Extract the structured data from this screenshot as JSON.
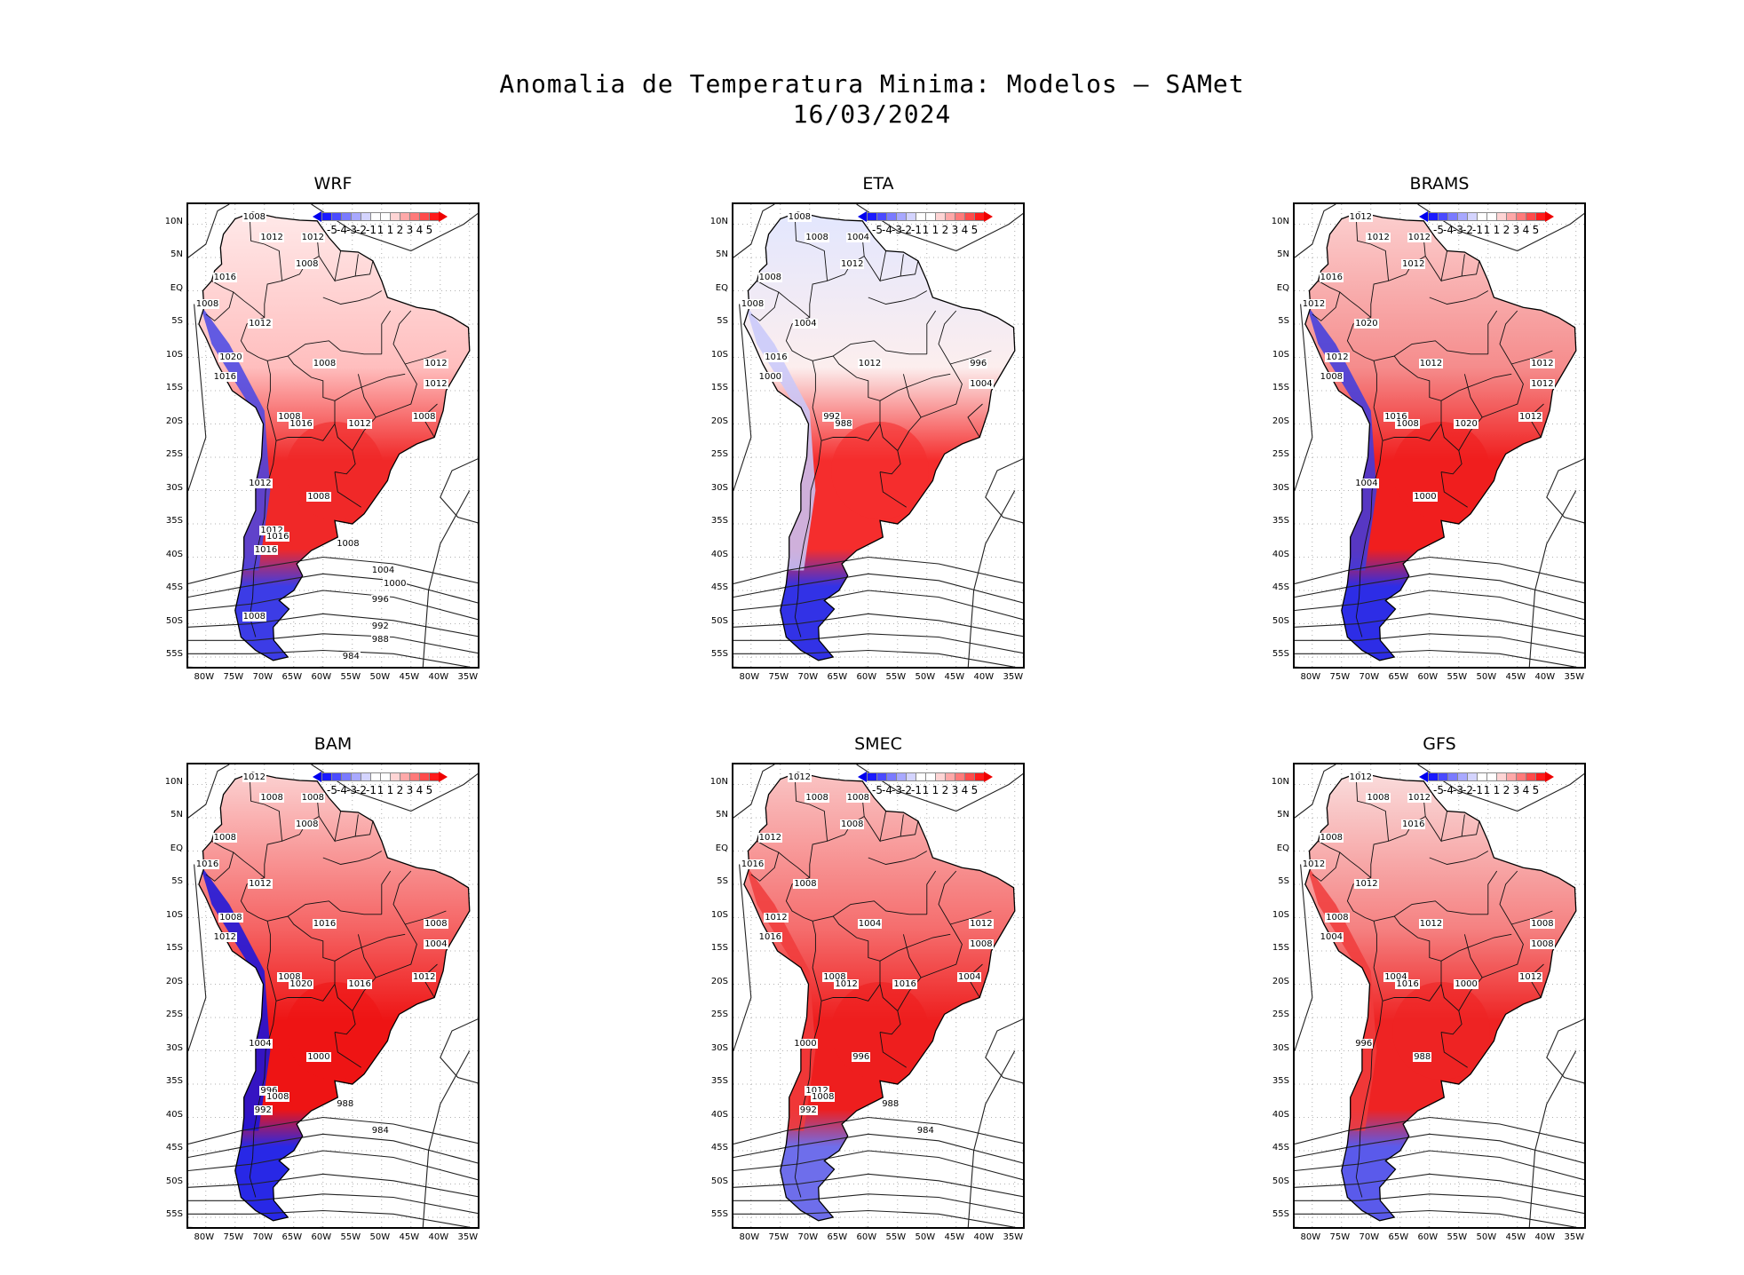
{
  "title": {
    "line1": "Anomalia de Temperatura Minima: Modelos — SAMet",
    "line2": "16/03/2024"
  },
  "axes": {
    "lat_labels": [
      "10N",
      "5N",
      "EQ",
      "5S",
      "10S",
      "15S",
      "20S",
      "25S",
      "30S",
      "35S",
      "40S",
      "45S",
      "50S",
      "55S"
    ],
    "lon_labels": [
      "80W",
      "75W",
      "70W",
      "65W",
      "60W",
      "55W",
      "50W",
      "45W",
      "40W",
      "35W"
    ]
  },
  "colorbar": {
    "labels": [
      "-5",
      "-4",
      "-3",
      "-2",
      "-1",
      "1",
      "1",
      "2",
      "3",
      "4",
      "5"
    ],
    "colors": [
      "#1a1aff",
      "#4a4aff",
      "#7a7aff",
      "#a8a8ff",
      "#d4d4ff",
      "#ffffff",
      "#ffffff",
      "#ffd4d4",
      "#ffa8a8",
      "#ff7a7a",
      "#ff4a4a",
      "#ff1a1a"
    ],
    "under_color": "#0000ee",
    "over_color": "#ee0000"
  },
  "panels": [
    {
      "name": "WRF",
      "isobars": [
        {
          "t": "1008"
        },
        {
          "t": "1012"
        },
        {
          "t": "1012"
        },
        {
          "t": "1008"
        },
        {
          "t": "1016"
        },
        {
          "t": "1008"
        },
        {
          "t": "1012"
        },
        {
          "t": "1020"
        },
        {
          "t": "1016"
        },
        {
          "t": "1008"
        },
        {
          "t": "1012"
        },
        {
          "t": "1012"
        },
        {
          "t": "1008"
        },
        {
          "t": "1016"
        },
        {
          "t": "1012"
        },
        {
          "t": "1008"
        },
        {
          "t": "1012"
        },
        {
          "t": "1008"
        },
        {
          "t": "1012"
        },
        {
          "t": "1016"
        },
        {
          "t": "1016"
        },
        {
          "t": "1008"
        },
        {
          "t": "1004"
        },
        {
          "t": "1000"
        },
        {
          "t": "996"
        },
        {
          "t": "1008"
        },
        {
          "t": "992"
        },
        {
          "t": "988"
        },
        {
          "t": "984"
        }
      ]
    },
    {
      "name": "ETA",
      "isobars": [
        {
          "t": "1008"
        },
        {
          "t": "1008"
        },
        {
          "t": "1004"
        },
        {
          "t": "1012"
        },
        {
          "t": "1008"
        },
        {
          "t": "1008"
        },
        {
          "t": "1004"
        },
        {
          "t": "1016"
        },
        {
          "t": "1000"
        },
        {
          "t": "1012"
        },
        {
          "t": "996"
        },
        {
          "t": "1004"
        },
        {
          "t": "992"
        },
        {
          "t": "988"
        }
      ]
    },
    {
      "name": "BRAMS",
      "isobars": [
        {
          "t": "1012"
        },
        {
          "t": "1012"
        },
        {
          "t": "1012"
        },
        {
          "t": "1012"
        },
        {
          "t": "1016"
        },
        {
          "t": "1012"
        },
        {
          "t": "1020"
        },
        {
          "t": "1012"
        },
        {
          "t": "1008"
        },
        {
          "t": "1012"
        },
        {
          "t": "1012"
        },
        {
          "t": "1012"
        },
        {
          "t": "1016"
        },
        {
          "t": "1008"
        },
        {
          "t": "1020"
        },
        {
          "t": "1012"
        },
        {
          "t": "1004"
        },
        {
          "t": "1000"
        }
      ]
    },
    {
      "name": "BAM",
      "isobars": [
        {
          "t": "1012"
        },
        {
          "t": "1008"
        },
        {
          "t": "1008"
        },
        {
          "t": "1008"
        },
        {
          "t": "1008"
        },
        {
          "t": "1016"
        },
        {
          "t": "1012"
        },
        {
          "t": "1008"
        },
        {
          "t": "1012"
        },
        {
          "t": "1016"
        },
        {
          "t": "1008"
        },
        {
          "t": "1004"
        },
        {
          "t": "1008"
        },
        {
          "t": "1020"
        },
        {
          "t": "1016"
        },
        {
          "t": "1012"
        },
        {
          "t": "1004"
        },
        {
          "t": "1000"
        },
        {
          "t": "996"
        },
        {
          "t": "1008"
        },
        {
          "t": "992"
        },
        {
          "t": "988"
        },
        {
          "t": "984"
        }
      ]
    },
    {
      "name": "SMEC",
      "isobars": [
        {
          "t": "1012"
        },
        {
          "t": "1008"
        },
        {
          "t": "1008"
        },
        {
          "t": "1008"
        },
        {
          "t": "1012"
        },
        {
          "t": "1016"
        },
        {
          "t": "1008"
        },
        {
          "t": "1012"
        },
        {
          "t": "1016"
        },
        {
          "t": "1004"
        },
        {
          "t": "1012"
        },
        {
          "t": "1008"
        },
        {
          "t": "1008"
        },
        {
          "t": "1012"
        },
        {
          "t": "1016"
        },
        {
          "t": "1004"
        },
        {
          "t": "1000"
        },
        {
          "t": "996"
        },
        {
          "t": "1012"
        },
        {
          "t": "1008"
        },
        {
          "t": "992"
        },
        {
          "t": "988"
        },
        {
          "t": "984"
        }
      ]
    },
    {
      "name": "GFS",
      "isobars": [
        {
          "t": "1012"
        },
        {
          "t": "1008"
        },
        {
          "t": "1012"
        },
        {
          "t": "1016"
        },
        {
          "t": "1008"
        },
        {
          "t": "1012"
        },
        {
          "t": "1012"
        },
        {
          "t": "1008"
        },
        {
          "t": "1004"
        },
        {
          "t": "1012"
        },
        {
          "t": "1008"
        },
        {
          "t": "1008"
        },
        {
          "t": "1004"
        },
        {
          "t": "1016"
        },
        {
          "t": "1000"
        },
        {
          "t": "1012"
        },
        {
          "t": "996"
        },
        {
          "t": "988"
        }
      ]
    }
  ]
}
